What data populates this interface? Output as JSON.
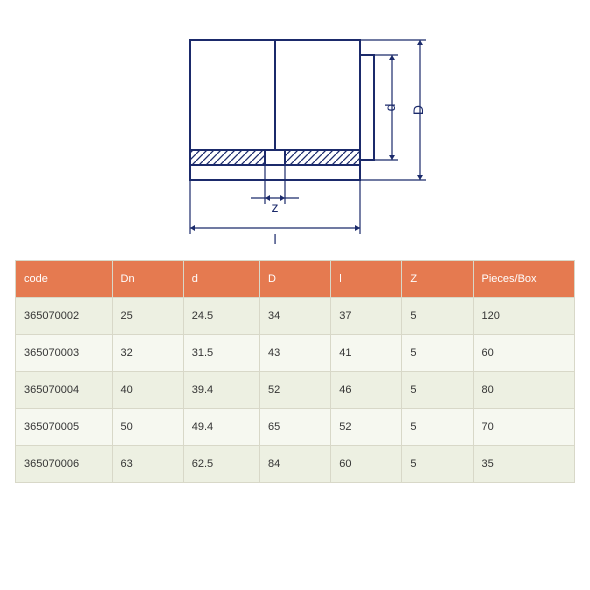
{
  "diagram": {
    "labels": {
      "D": "D",
      "d": "d",
      "z": "z",
      "l": "l"
    },
    "stroke": "#1b2a6b",
    "hatch": "#1b2a6b",
    "stroke_width": 2,
    "dim_stroke_width": 1.2,
    "fontsize": 14
  },
  "table": {
    "header_bg": "#e57a50",
    "header_fg": "#ffffff",
    "row_bg_even": "#edf0e2",
    "row_bg_odd": "#f6f8f0",
    "border_color": "#d8d8c8",
    "columns": [
      "code",
      "Dn",
      "d",
      "D",
      "l",
      "Z",
      "Pieces/Box"
    ],
    "col_classes": [
      "col-code",
      "col-dn",
      "col-d",
      "col-D",
      "col-l",
      "col-z",
      "col-pb"
    ],
    "rows": [
      [
        "365070002",
        "25",
        "24.5",
        "34",
        "37",
        "5",
        "120"
      ],
      [
        "365070003",
        "32",
        "31.5",
        "43",
        "41",
        "5",
        "60"
      ],
      [
        "365070004",
        "40",
        "39.4",
        "52",
        "46",
        "5",
        "80"
      ],
      [
        "365070005",
        "50",
        "49.4",
        "65",
        "52",
        "5",
        "70"
      ],
      [
        "365070006",
        "63",
        "62.5",
        "84",
        "60",
        "5",
        "35"
      ]
    ]
  }
}
